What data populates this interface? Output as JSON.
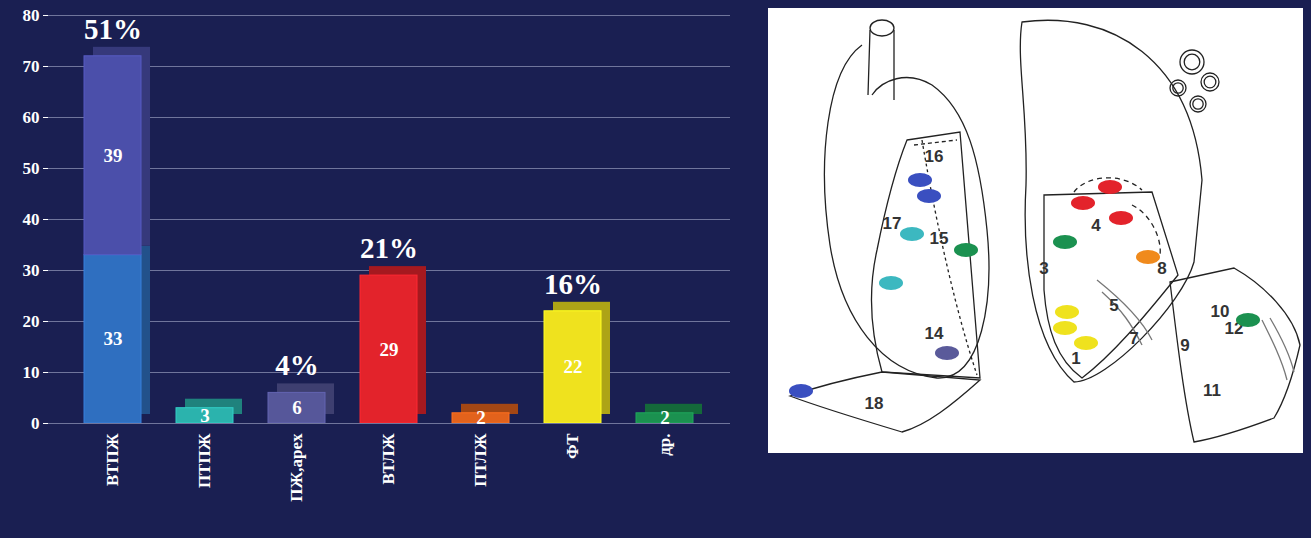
{
  "chart_data": {
    "type": "bar",
    "stacked": true,
    "data_labels": true,
    "grid": true,
    "categories": [
      "ВТПЖ",
      "ПТПЖ",
      "ПЖ,apex",
      "ВТЛЖ",
      "ПТЛЖ",
      "ФТ",
      "др."
    ],
    "series": [
      {
        "values": [
          33,
          3,
          6,
          29,
          2,
          22,
          2
        ],
        "colors": [
          "#2f6fc0",
          "#2bb3ad",
          "#56579a",
          "#e3232b",
          "#e2621c",
          "#efe21e",
          "#1b9150"
        ]
      },
      {
        "values": [
          39,
          null,
          null,
          null,
          null,
          null,
          null
        ],
        "colors": [
          "#4b4faa",
          null,
          null,
          null,
          null,
          null,
          null
        ]
      }
    ],
    "annotations": [
      {
        "category": "ВТПЖ",
        "text": "51%"
      },
      {
        "category": "ПЖ,apex",
        "text": "4%"
      },
      {
        "category": "ВТЛЖ",
        "text": "21%"
      },
      {
        "category": "ФТ",
        "text": "16%"
      }
    ],
    "ylim": [
      0,
      80
    ],
    "yticks": [
      0,
      10,
      20,
      30,
      40,
      50,
      60,
      70,
      80
    ]
  },
  "diagram": {
    "views": [
      {
        "labels": [
          "16",
          "17",
          "15",
          "14",
          "18"
        ]
      },
      {
        "labels": [
          "4",
          "3",
          "8",
          "5",
          "7",
          "1"
        ]
      },
      {
        "labels": [
          "10",
          "12",
          "9",
          "11"
        ]
      }
    ]
  }
}
